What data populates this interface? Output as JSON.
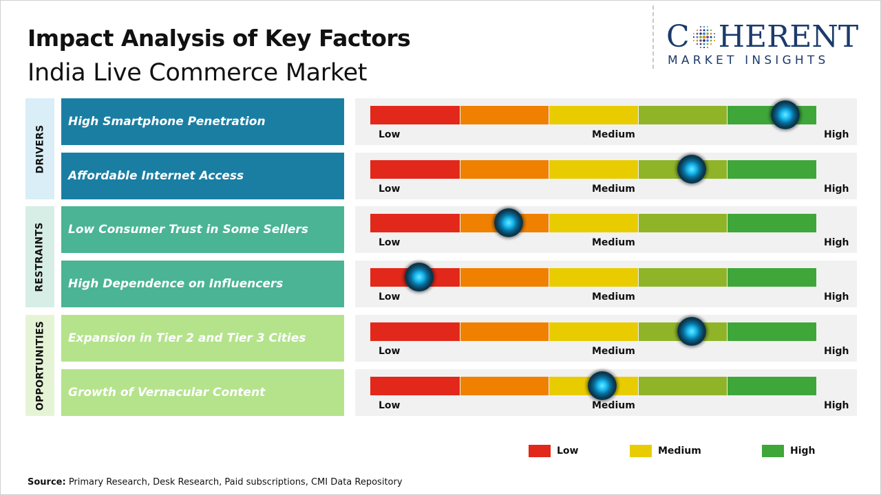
{
  "header": {
    "title": "Impact Analysis of Key Factors",
    "subtitle": "India Live Commerce Market"
  },
  "logo": {
    "word_before": "C",
    "word_after": "HERENT",
    "tagline": "MARKET INSIGHTS"
  },
  "groups": [
    {
      "label": "DRIVERS"
    },
    {
      "label": "RESTRAINTS"
    },
    {
      "label": "OPPORTUNITIES"
    }
  ],
  "scale": {
    "low": "Low",
    "medium": "Medium",
    "high": "High",
    "segment_colors": [
      "#e2281a",
      "#f08000",
      "#e8cc00",
      "#8fb428",
      "#3fa63a"
    ]
  },
  "chart_data": {
    "type": "table",
    "value_range": [
      0,
      1
    ],
    "scale_labels": [
      "Low",
      "Medium",
      "High"
    ],
    "rows": [
      {
        "group": "DRIVERS",
        "factor": "High Smartphone Penetration",
        "impact": 0.93
      },
      {
        "group": "DRIVERS",
        "factor": "Affordable Internet Access",
        "impact": 0.72
      },
      {
        "group": "RESTRAINTS",
        "factor": "Low Consumer Trust in Some Sellers",
        "impact": 0.31
      },
      {
        "group": "RESTRAINTS",
        "factor": "High Dependence on Influencers",
        "impact": 0.11
      },
      {
        "group": "OPPORTUNITIES",
        "factor": "Expansion in Tier 2 and Tier 3 Cities",
        "impact": 0.72
      },
      {
        "group": "OPPORTUNITIES",
        "factor": "Growth of Vernacular Content",
        "impact": 0.52
      }
    ]
  },
  "legend": [
    {
      "label": "Low",
      "color": "#e2281a"
    },
    {
      "label": "Medium",
      "color": "#e8cc00"
    },
    {
      "label": "High",
      "color": "#3fa63a"
    }
  ],
  "source": {
    "prefix": "Source:",
    "text": " Primary Research, Desk Research, Paid subscriptions, CMI Data Repository"
  }
}
